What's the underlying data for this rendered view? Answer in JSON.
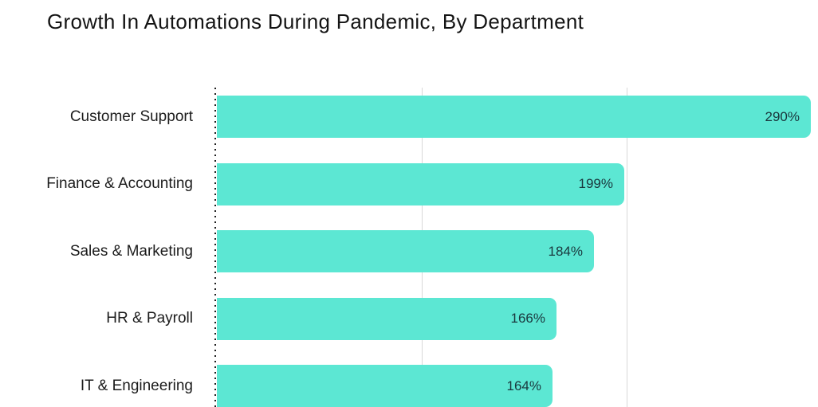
{
  "title": "Growth In Automations During Pandemic, By Department",
  "colors": {
    "bar": "#5ce7d3",
    "gridline": "#d9d9d9",
    "axis_dots": "#1f1f1f",
    "title_text": "#141414",
    "category_text": "#1c1c1c",
    "value_text": "#1a373d",
    "background": "#ffffff"
  },
  "chart_data": {
    "type": "bar",
    "orientation": "horizontal",
    "title": "Growth In Automations During Pandemic, By Department",
    "categories": [
      "Customer Support",
      "Finance & Accounting",
      "Sales & Marketing",
      "HR & Payroll",
      "IT & Engineering"
    ],
    "values": [
      290,
      199,
      184,
      166,
      164
    ],
    "value_labels": [
      "290%",
      "199%",
      "184%",
      "166%",
      "164%"
    ],
    "value_suffix": "%",
    "xlabel": "",
    "ylabel": "",
    "xlim": [
      0,
      300
    ],
    "gridlines_at": [
      100,
      200
    ],
    "grid": true,
    "legend": false,
    "value_label_position": "inside-right",
    "axis_style": "dotted-zero-line"
  }
}
